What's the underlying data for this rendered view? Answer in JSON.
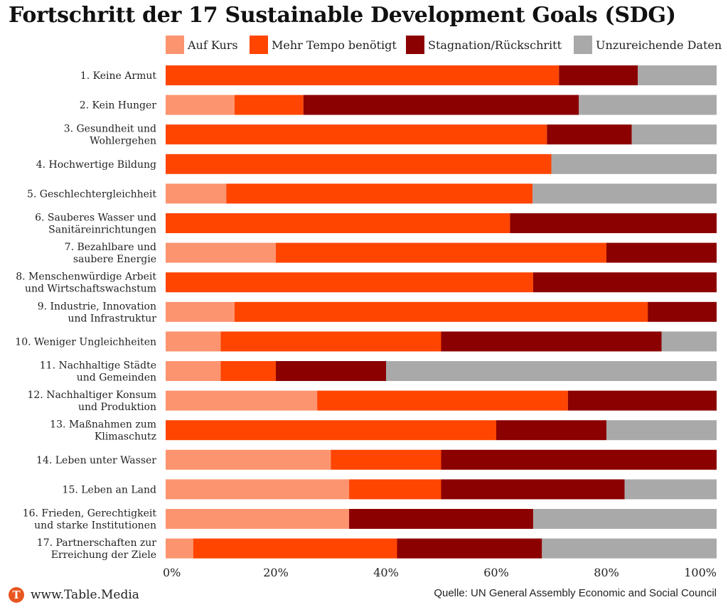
{
  "page": {
    "title": "Fortschritt der 17 Sustainable Development Goals (SDG)",
    "brand": "www.Table.Media",
    "logo_letter": "T",
    "source": "Quelle: UN General Assembly Economic and Social Council"
  },
  "chart_data": {
    "type": "bar",
    "orientation": "horizontal",
    "stacked": true,
    "title": "Fortschritt der 17 Sustainable Development Goals (SDG)",
    "legend_position": "top",
    "xlim": [
      0,
      100
    ],
    "x_ticks": [
      "0%",
      "20%",
      "40%",
      "60%",
      "80%",
      "100%"
    ],
    "grid": false,
    "categories": [
      "1. Keine Armut",
      "2. Kein Hunger",
      "3. Gesundheit und Wohlergehen",
      "4. Hochwertige Bildung",
      "5. Geschlechtergleichheit",
      "6. Sauberes Wasser und Sanitäreinrichtungen",
      "7. Bezahlbare und saubere Energie",
      "8. Menschenwürdige Arbeit und Wirtschaftswachstum",
      "9. Industrie, Innovation und Infrastruktur",
      "10. Weniger Ungleichheiten",
      "11. Nachhaltige Städte und Gemeinden",
      "12. Nachhaltiger Konsum und Produktion",
      "13. Maßnahmen zum Klimaschutz",
      "14. Leben unter Wasser",
      "15. Leben an Land",
      "16. Frieden, Gerechtigkeit und starke Institutionen",
      "17. Partnerschaften zur Erreichung der Ziele"
    ],
    "category_lines": [
      [
        "1. Keine Armut"
      ],
      [
        "2. Kein Hunger"
      ],
      [
        "3. Gesundheit und",
        "Wohlergehen"
      ],
      [
        "4. Hochwertige Bildung"
      ],
      [
        "5. Geschlechtergleichheit"
      ],
      [
        "6. Sauberes Wasser und",
        "Sanitäreinrichtungen"
      ],
      [
        "7. Bezahlbare und",
        "saubere Energie"
      ],
      [
        "8. Menschenwürdige Arbeit",
        "und Wirtschaftswachstum"
      ],
      [
        "9. Industrie, Innovation",
        "und Infrastruktur"
      ],
      [
        "10. Weniger Ungleichheiten"
      ],
      [
        "11. Nachhaltige Städte",
        "und Gemeinden"
      ],
      [
        "12. Nachhaltiger Konsum",
        "und Produktion"
      ],
      [
        "13. Maßnahmen zum",
        "Klimaschutz"
      ],
      [
        "14. Leben unter Wasser"
      ],
      [
        "15. Leben an Land"
      ],
      [
        "16. Frieden, Gerechtigkeit",
        "und starke Institutionen"
      ],
      [
        "17. Partnerschaften zur",
        "Erreichung der Ziele"
      ]
    ],
    "series": [
      {
        "name": "Auf Kurs",
        "color": "#fc9470",
        "values": [
          0,
          12.5,
          0,
          0,
          11,
          0,
          20,
          0,
          12.5,
          10,
          10,
          27.5,
          0,
          30,
          33.3,
          33.3,
          5
        ]
      },
      {
        "name": "Mehr Tempo benötigt",
        "color": "#ff4500",
        "values": [
          71.4,
          12.5,
          69.2,
          70,
          55.6,
          62.5,
          60,
          66.7,
          75,
          40,
          10,
          45.5,
          60,
          20,
          16.7,
          0,
          37
        ]
      },
      {
        "name": "Stagnation/Rückschritt",
        "color": "#8b0000",
        "values": [
          14.3,
          50,
          15.4,
          0,
          0,
          37.5,
          20,
          33.3,
          12.5,
          40,
          20,
          27,
          20,
          50,
          33.3,
          33.4,
          26.3
        ]
      },
      {
        "name": "Unzureichende Daten",
        "color": "#a9a9a9",
        "values": [
          14.3,
          25,
          15.4,
          30,
          33.4,
          0,
          0,
          0,
          0,
          10,
          60,
          0,
          20,
          0,
          16.7,
          33.3,
          31.7
        ]
      }
    ]
  }
}
